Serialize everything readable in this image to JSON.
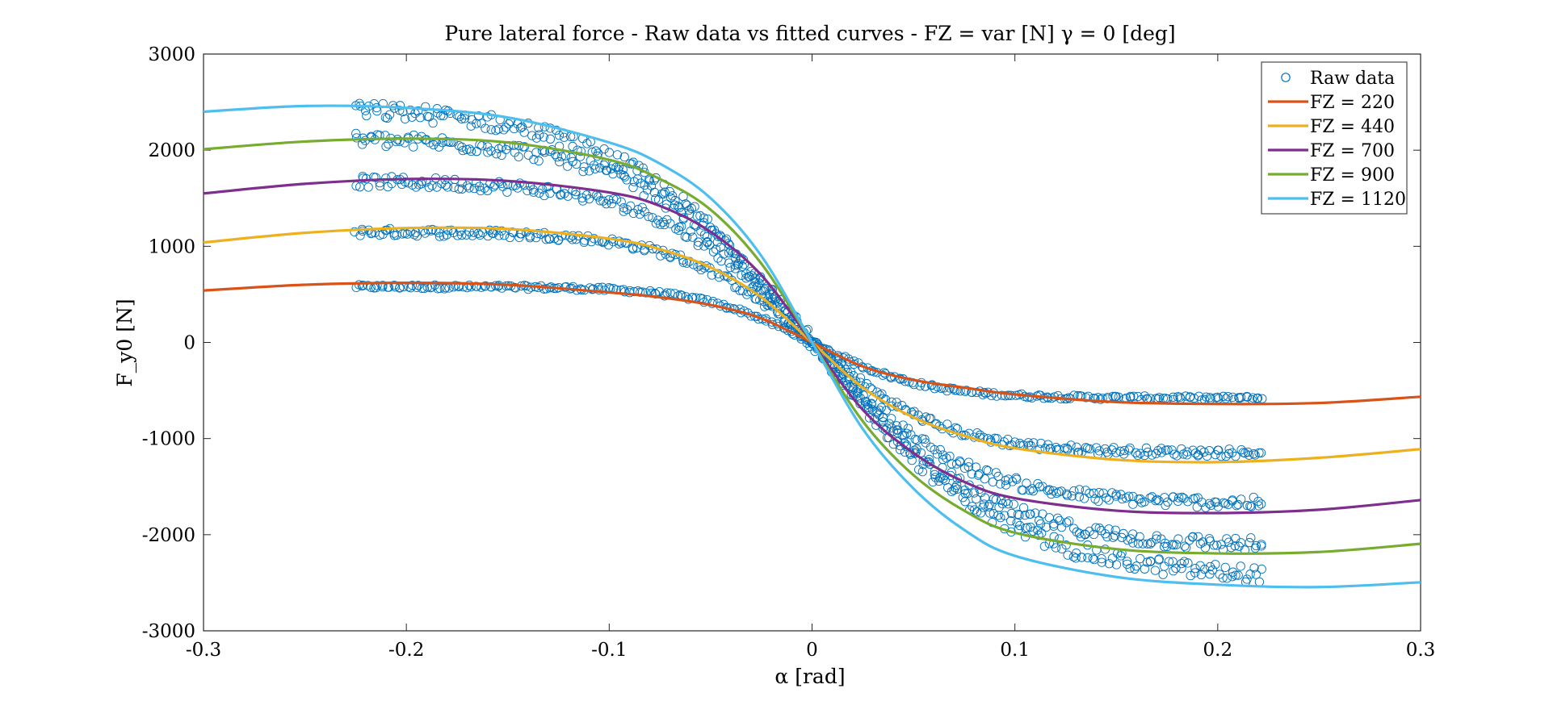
{
  "chart_data": {
    "type": "scatter",
    "title": "Pure lateral force - Raw data vs fitted curves - FZ = var [N] γ = 0 [deg]",
    "xlabel": "α [rad]",
    "ylabel": "F_y0 [N]",
    "xlim": [
      -0.3,
      0.3
    ],
    "ylim": [
      -3000,
      3000
    ],
    "xticks": [
      -0.3,
      -0.2,
      -0.1,
      0,
      0.1,
      0.2,
      0.3
    ],
    "xtick_labels": [
      "-0.3",
      "-0.2",
      "-0.1",
      "0",
      "0.1",
      "0.2",
      "0.3"
    ],
    "yticks": [
      -3000,
      -2000,
      -1000,
      0,
      1000,
      2000,
      3000
    ],
    "ytick_labels": [
      "-3000",
      "-2000",
      "-1000",
      "0",
      "1000",
      "2000",
      "3000"
    ],
    "grid": false,
    "legend_position": "top-right",
    "raw_data": {
      "name": "Raw data",
      "color": "#0072BD",
      "marker": "circle",
      "x_range": [
        -0.225,
        0.222
      ],
      "bands": [
        {
          "fz": 220,
          "plateau": 580,
          "slope_width": 0.055
        },
        {
          "fz": 440,
          "plateau": 1150,
          "slope_width": 0.065
        },
        {
          "fz": 700,
          "plateau": 1680,
          "slope_width": 0.075
        },
        {
          "fz": 900,
          "plateau": 2130,
          "slope_width": 0.085
        },
        {
          "fz": 1120,
          "plateau": 2460,
          "slope_width": 0.095
        }
      ]
    },
    "series": [
      {
        "name": "FZ = 220",
        "color": "#D95319",
        "x": [
          -0.3,
          -0.25,
          -0.2,
          -0.15,
          -0.1,
          -0.075,
          -0.05,
          -0.025,
          0,
          0.025,
          0.05,
          0.075,
          0.1,
          0.15,
          0.2,
          0.25,
          0.3
        ],
        "y": [
          540,
          600,
          620,
          600,
          520,
          470,
          390,
          250,
          0,
          -250,
          -390,
          -470,
          -540,
          -620,
          -640,
          -630,
          -565
        ]
      },
      {
        "name": "FZ = 440",
        "color": "#EDB120",
        "x": [
          -0.3,
          -0.25,
          -0.2,
          -0.15,
          -0.1,
          -0.075,
          -0.05,
          -0.025,
          0,
          0.025,
          0.05,
          0.075,
          0.1,
          0.15,
          0.2,
          0.25,
          0.3
        ],
        "y": [
          1040,
          1140,
          1190,
          1180,
          1080,
          970,
          780,
          470,
          0,
          -470,
          -780,
          -970,
          -1100,
          -1220,
          -1245,
          -1200,
          -1110
        ]
      },
      {
        "name": "FZ = 700",
        "color": "#7E2F8E",
        "x": [
          -0.3,
          -0.25,
          -0.2,
          -0.15,
          -0.1,
          -0.075,
          -0.05,
          -0.025,
          0,
          0.025,
          0.05,
          0.075,
          0.1,
          0.15,
          0.2,
          0.25,
          0.3
        ],
        "y": [
          1550,
          1650,
          1700,
          1680,
          1560,
          1420,
          1150,
          700,
          0,
          -700,
          -1150,
          -1450,
          -1620,
          -1750,
          -1775,
          -1740,
          -1640
        ]
      },
      {
        "name": "FZ = 900",
        "color": "#77AC30",
        "x": [
          -0.3,
          -0.25,
          -0.2,
          -0.15,
          -0.1,
          -0.075,
          -0.05,
          -0.025,
          0,
          0.025,
          0.05,
          0.075,
          0.1,
          0.15,
          0.2,
          0.25,
          0.3
        ],
        "y": [
          2010,
          2090,
          2120,
          2080,
          1900,
          1700,
          1380,
          820,
          0,
          -820,
          -1380,
          -1750,
          -1980,
          -2150,
          -2195,
          -2180,
          -2095
        ]
      },
      {
        "name": "FZ = 1120",
        "color": "#4DBEEE",
        "x": [
          -0.3,
          -0.25,
          -0.2,
          -0.15,
          -0.1,
          -0.075,
          -0.05,
          -0.025,
          0,
          0.025,
          0.05,
          0.075,
          0.1,
          0.15,
          0.2,
          0.25,
          0.3
        ],
        "y": [
          2400,
          2460,
          2440,
          2340,
          2080,
          1860,
          1500,
          900,
          0,
          -900,
          -1520,
          -1950,
          -2220,
          -2440,
          -2520,
          -2545,
          -2495
        ]
      }
    ]
  }
}
